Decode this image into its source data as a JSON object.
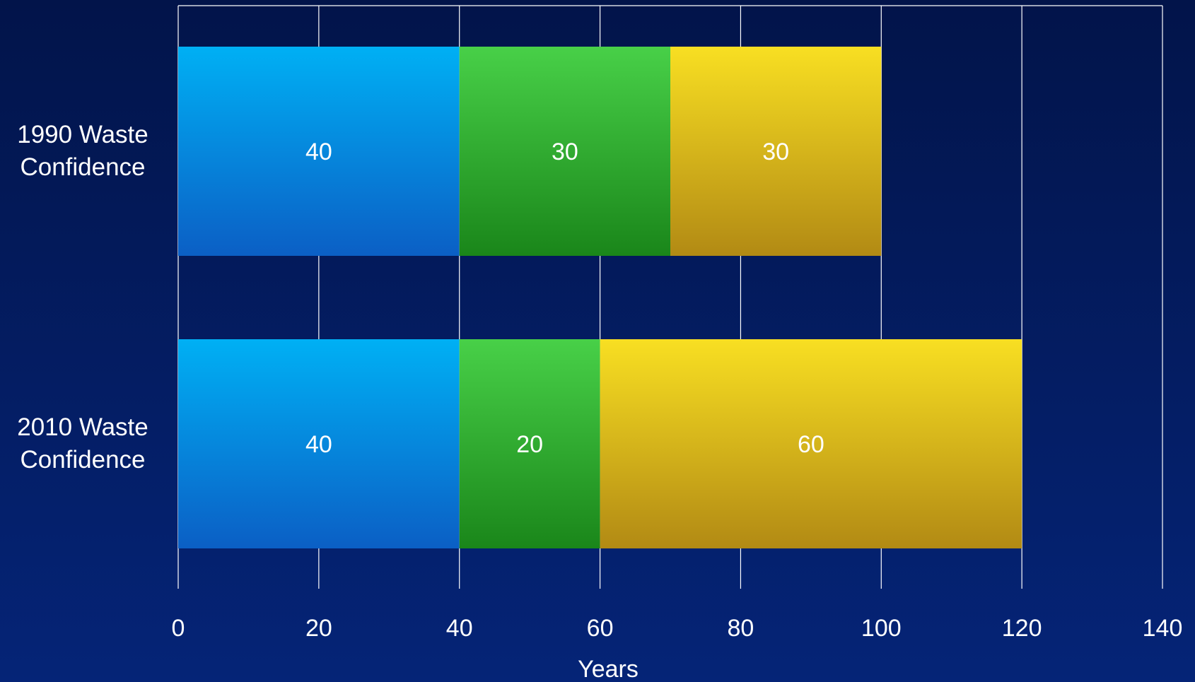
{
  "chart_data": {
    "type": "bar",
    "orientation": "horizontal",
    "stacked": true,
    "categories": [
      [
        "1990 Waste",
        "Confidence"
      ],
      [
        "2010 Waste",
        "Confidence"
      ]
    ],
    "series": [
      {
        "values": [
          40,
          40
        ],
        "color_top": "#00b0f4",
        "color_bottom": "#0b5fc5"
      },
      {
        "values": [
          30,
          20
        ],
        "color_top": "#48d048",
        "color_bottom": "#1a861a"
      },
      {
        "values": [
          30,
          60
        ],
        "color_top": "#f8df22",
        "color_bottom": "#b28a14"
      }
    ],
    "xlabel": "Years",
    "ylabel": "",
    "title": "",
    "xlim": [
      0,
      140
    ],
    "xticks": [
      "0",
      "20",
      "40",
      "60",
      "80",
      "100",
      "120",
      "140"
    ],
    "grid": true,
    "legend": "none"
  }
}
